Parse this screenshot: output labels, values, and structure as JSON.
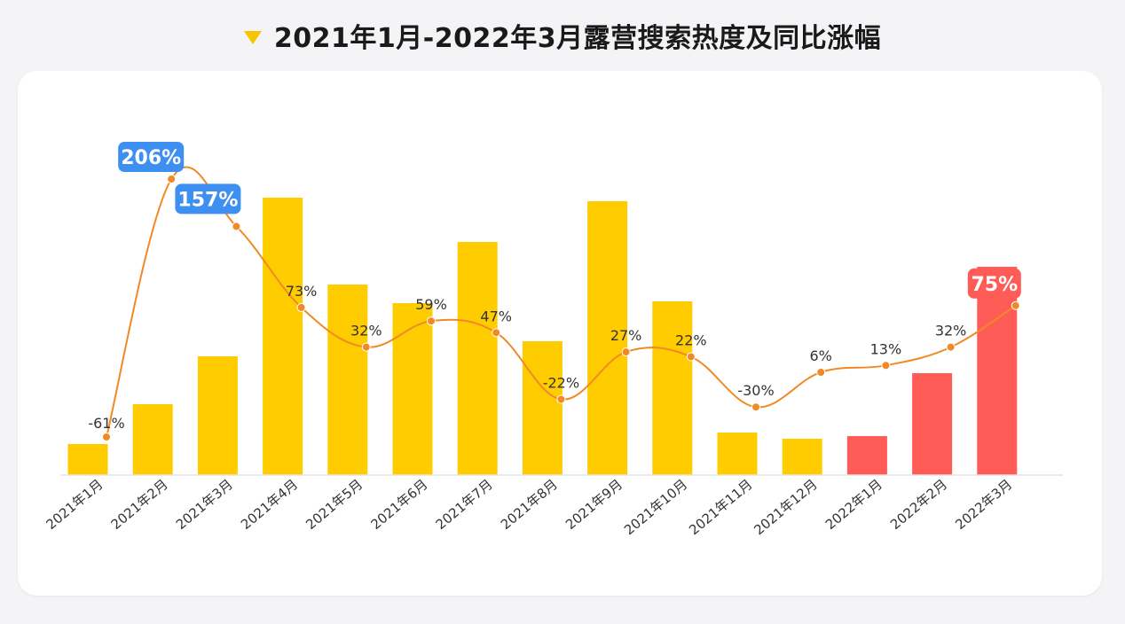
{
  "title": "2021年1月-2022年3月露营搜索热度及同比涨幅",
  "chart_data": {
    "type": "bar",
    "categories": [
      "2021年1月",
      "2021年2月",
      "2021年3月",
      "2021年4月",
      "2021年5月",
      "2021年6月",
      "2021年7月",
      "2021年8月",
      "2021年9月",
      "2021年10月",
      "2021年11月",
      "2021年12月",
      "2022年1月",
      "2022年2月",
      "2022年3月"
    ],
    "series": [
      {
        "type": "bar",
        "values": [
          35,
          80,
          134,
          313,
          215,
          194,
          263,
          151,
          309,
          196,
          48,
          41,
          44,
          115,
          235
        ],
        "colors": [
          "#ffcc00",
          "#ffcc00",
          "#ffcc00",
          "#ffcc00",
          "#ffcc00",
          "#ffcc00",
          "#ffcc00",
          "#ffcc00",
          "#ffcc00",
          "#ffcc00",
          "#ffcc00",
          "#ffcc00",
          "#ff5b57",
          "#ff5b57",
          "#ff5b57"
        ]
      },
      {
        "type": "line",
        "values": [
          -61,
          206,
          157,
          73,
          32,
          59,
          47,
          -22,
          27,
          22,
          -30,
          6,
          13,
          32,
          75
        ],
        "labels": [
          "-61%",
          "206%",
          "157%",
          "73%",
          "32%",
          "59%",
          "47%",
          "-22%",
          "27%",
          "22%",
          "-30%",
          "6%",
          "13%",
          "32%",
          "75%"
        ],
        "highlight": [
          {
            "index": 1,
            "color": "#3d8ff2"
          },
          {
            "index": 2,
            "color": "#3d8ff2"
          },
          {
            "index": 14,
            "color": "#ff5b57"
          }
        ],
        "color": "#f08a24"
      }
    ],
    "legend": "none",
    "grid": false
  }
}
